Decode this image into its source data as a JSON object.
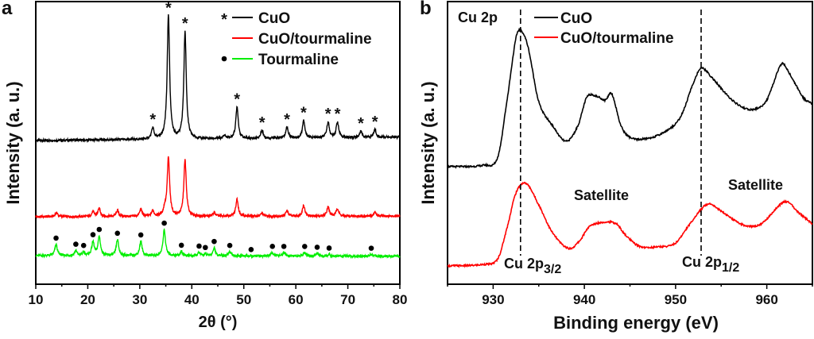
{
  "chart_data": [
    {
      "panel_label": "a",
      "type": "line",
      "title": "",
      "xlabel": "2θ (°)",
      "ylabel": "Intensity (a. u.)",
      "xlim": [
        10,
        80
      ],
      "ylim": [
        0,
        356
      ],
      "xticks": [
        10,
        20,
        30,
        40,
        50,
        60,
        70,
        80
      ],
      "grid": false,
      "legend": {
        "placement": "top-right",
        "entries": [
          {
            "label": "CuO",
            "marker": "*",
            "color": "#000000"
          },
          {
            "label": "CuO/tourmaline",
            "marker": "",
            "color": "#ff0000"
          },
          {
            "label": "Tourmaline",
            "marker": "•",
            "color": "#00ee00"
          }
        ]
      },
      "series": [
        {
          "name": "CuO",
          "color": "#000000",
          "baseline": 181,
          "slope": 0.06,
          "peaks": [
            [
              32.5,
              14
            ],
            [
              35.5,
              155
            ],
            [
              38.7,
              135
            ],
            [
              46.3,
              4
            ],
            [
              48.7,
              40
            ],
            [
              53.5,
              10
            ],
            [
              58.3,
              14
            ],
            [
              61.5,
              22
            ],
            [
              66.2,
              20
            ],
            [
              68.0,
              20
            ],
            [
              72.5,
              8
            ],
            [
              75.2,
              10
            ]
          ],
          "markers": {
            "symbol": "*",
            "x": [
              32.5,
              35.5,
              38.7,
              48.7,
              53.5,
              58.3,
              61.5,
              66.2,
              68.0,
              72.5,
              75.2
            ]
          }
        },
        {
          "name": "CuO/tourmaline",
          "color": "#ff0000",
          "baseline": 85,
          "slope": 0.01,
          "peaks": [
            [
              14,
              5
            ],
            [
              21,
              6
            ],
            [
              22.2,
              10
            ],
            [
              25.7,
              8
            ],
            [
              30.2,
              9
            ],
            [
              32.5,
              7
            ],
            [
              34.8,
              8
            ],
            [
              35.5,
              73
            ],
            [
              38.7,
              71
            ],
            [
              44.3,
              5
            ],
            [
              48.7,
              22
            ],
            [
              53.5,
              4
            ],
            [
              58.3,
              7
            ],
            [
              61.5,
              14
            ],
            [
              66.2,
              12
            ],
            [
              68.0,
              10
            ],
            [
              75.2,
              5
            ]
          ],
          "markers": null
        },
        {
          "name": "Tourmaline",
          "color": "#00ee00",
          "baseline": 36,
          "slope": -0.01,
          "peaks": [
            [
              13.9,
              14
            ],
            [
              17.7,
              6
            ],
            [
              19.2,
              4
            ],
            [
              21.0,
              17
            ],
            [
              22.2,
              24
            ],
            [
              25.7,
              20
            ],
            [
              30.2,
              18
            ],
            [
              34.7,
              33
            ],
            [
              38.0,
              5
            ],
            [
              41.4,
              4
            ],
            [
              42.6,
              2
            ],
            [
              44.3,
              10
            ],
            [
              47.3,
              5
            ],
            [
              55.5,
              4
            ],
            [
              57.7,
              4
            ],
            [
              61.7,
              4
            ],
            [
              64.1,
              3
            ],
            [
              66.4,
              2
            ],
            [
              74.5,
              2
            ]
          ],
          "markers": {
            "symbol": "•",
            "x": [
              13.9,
              17.7,
              19.2,
              21.0,
              22.2,
              25.7,
              30.2,
              34.7,
              38.0,
              41.4,
              42.6,
              44.3,
              47.3,
              51.4,
              55.5,
              57.7,
              61.7,
              64.1,
              66.4,
              74.5
            ]
          }
        }
      ]
    },
    {
      "panel_label": "b",
      "type": "line",
      "title": "",
      "xlabel": "Binding energy (eV)",
      "ylabel": "Intensity (a. u.)",
      "xlim": [
        925,
        965
      ],
      "ylim": [
        0,
        356
      ],
      "xticks": [
        930,
        940,
        950,
        960
      ],
      "grid": false,
      "legend": {
        "placement": "top-center",
        "entries": [
          {
            "label": "CuO",
            "color": "#000000"
          },
          {
            "label": "CuO/tourmaline",
            "color": "#ff0000"
          }
        ]
      },
      "annotations": {
        "title": "Cu 2p",
        "satellite": "Satellite",
        "p32": {
          "base": "Cu 2p",
          "sub": "3/2"
        },
        "p12": {
          "base": "Cu 2p",
          "sub": "1/2"
        },
        "dashed_x": [
          933.0,
          952.8
        ]
      },
      "series": [
        {
          "name": "CuO",
          "color": "#000000",
          "points": [
            [
              925,
              148
            ],
            [
              929,
              150
            ],
            [
              930.5,
              160
            ],
            [
              931.5,
              230
            ],
            [
              932.5,
              310
            ],
            [
              933,
              320
            ],
            [
              933.8,
              300
            ],
            [
              935,
              230
            ],
            [
              936.5,
              200
            ],
            [
              938,
              180
            ],
            [
              939.3,
              200
            ],
            [
              940.3,
              236
            ],
            [
              941.5,
              236
            ],
            [
              942.3,
              232
            ],
            [
              943,
              240
            ],
            [
              944,
              200
            ],
            [
              945,
              185
            ],
            [
              946.5,
              183
            ],
            [
              948.5,
              190
            ],
            [
              950.5,
              210
            ],
            [
              952,
              255
            ],
            [
              952.8,
              272
            ],
            [
              954,
              260
            ],
            [
              955.5,
              240
            ],
            [
              957,
              225
            ],
            [
              958.5,
              220
            ],
            [
              960,
              232
            ],
            [
              961.6,
              277
            ],
            [
              962.5,
              265
            ],
            [
              964,
              235
            ],
            [
              965,
              227
            ]
          ]
        },
        {
          "name": "CuO/tourmaline",
          "color": "#ff0000",
          "points": [
            [
              925,
              23
            ],
            [
              929,
              25
            ],
            [
              930.5,
              32
            ],
            [
              931.5,
              70
            ],
            [
              932.5,
              115
            ],
            [
              933.6,
              127
            ],
            [
              935,
              100
            ],
            [
              936.5,
              65
            ],
            [
              938.3,
              45
            ],
            [
              939.5,
              55
            ],
            [
              940.5,
              72
            ],
            [
              942,
              78
            ],
            [
              943.5,
              76
            ],
            [
              944.5,
              62
            ],
            [
              946,
              48
            ],
            [
              948,
              47
            ],
            [
              950,
              52
            ],
            [
              951.5,
              75
            ],
            [
              953.5,
              101
            ],
            [
              955,
              92
            ],
            [
              956.5,
              80
            ],
            [
              958,
              73
            ],
            [
              959.5,
              77
            ],
            [
              962,
              104
            ],
            [
              963.5,
              90
            ],
            [
              965,
              76
            ]
          ]
        }
      ]
    }
  ]
}
